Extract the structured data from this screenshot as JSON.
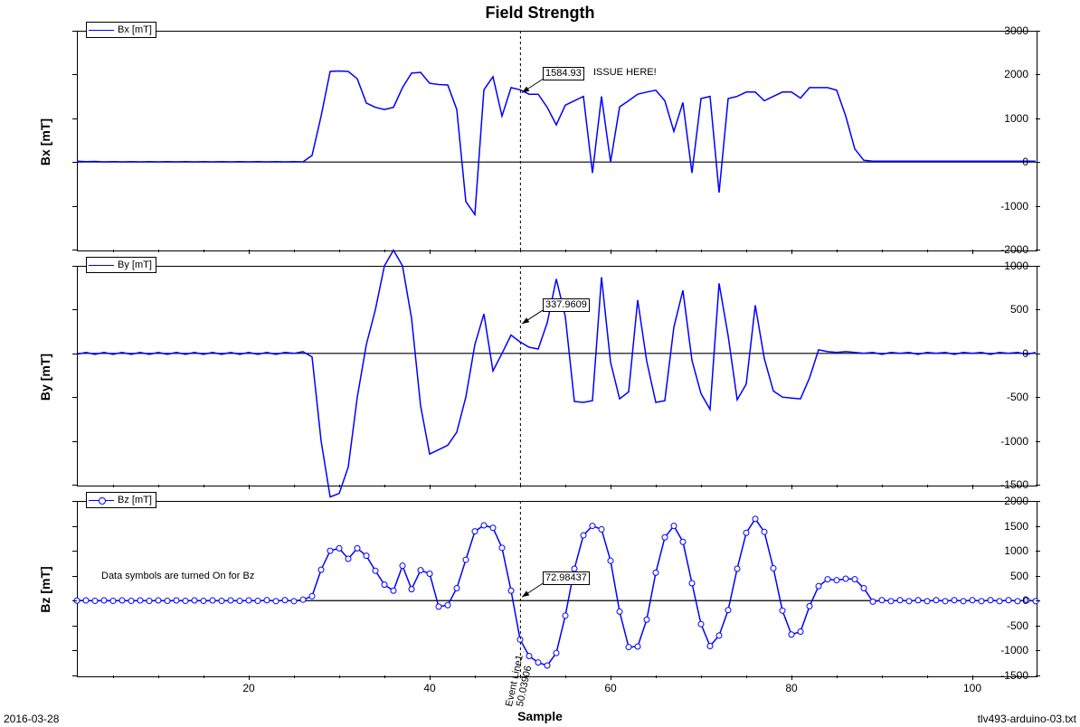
{
  "title": "Field Strength",
  "footer_left": "2016-03-28",
  "footer_right": "tlv493-arduino-03.txt",
  "xlabel": "Sample",
  "series_color": "#0000ff",
  "grid_color": "#000000",
  "event_line": {
    "x": 50.03906,
    "label1": "Event Line1",
    "label2": "50.03906"
  },
  "charts": [
    {
      "id": "bx",
      "ylabel": "Bx [mT]",
      "legend": "Bx [mT]",
      "ylim": [
        -2000,
        3000
      ],
      "yticks": [
        -2000,
        -1000,
        0,
        1000,
        2000,
        3000
      ],
      "markers": false,
      "callout": {
        "x": 50,
        "y_approx": 1584.93,
        "text": "1584.93",
        "extra": "ISSUE HERE!"
      },
      "data": [
        20,
        10,
        15,
        5,
        10,
        5,
        10,
        5,
        10,
        5,
        10,
        5,
        10,
        5,
        10,
        5,
        10,
        5,
        10,
        5,
        10,
        5,
        10,
        5,
        10,
        5,
        150,
        1050,
        2070,
        2080,
        2070,
        1900,
        1350,
        1250,
        1200,
        1250,
        1700,
        2030,
        2050,
        1800,
        1770,
        1760,
        1200,
        -900,
        -1200,
        1650,
        1950,
        1050,
        1700,
        1650,
        1550,
        1550,
        1250,
        850,
        1300,
        1400,
        1500,
        -250,
        1500,
        0,
        1260,
        1400,
        1550,
        1600,
        1640,
        1400,
        700,
        1360,
        -250,
        1450,
        1500,
        -700,
        1450,
        1500,
        1600,
        1600,
        1400,
        1500,
        1600,
        1600,
        1460,
        1700,
        1700,
        1700,
        1640,
        1050,
        300,
        40,
        20,
        20,
        20,
        20,
        20,
        20,
        20,
        20,
        20,
        20,
        20,
        20,
        20,
        20,
        20,
        20,
        20,
        20,
        20
      ]
    },
    {
      "id": "by",
      "ylabel": "By [mT]",
      "legend": "By [mT]",
      "ylim": [
        -1500,
        1000
      ],
      "yticks": [
        -1500,
        -1000,
        -500,
        0,
        500,
        1000
      ],
      "markers": false,
      "callout": {
        "x": 50,
        "y_approx": 337.96,
        "text": "337.9609"
      },
      "data": [
        -10,
        10,
        -10,
        10,
        -10,
        10,
        -10,
        10,
        -10,
        10,
        -10,
        10,
        -10,
        10,
        -10,
        10,
        -10,
        10,
        -10,
        10,
        -10,
        10,
        -10,
        10,
        0,
        20,
        -40,
        -1000,
        -1640,
        -1600,
        -1300,
        -500,
        100,
        500,
        1000,
        1180,
        1000,
        400,
        -600,
        -1150,
        -1100,
        -1050,
        -900,
        -500,
        100,
        450,
        -200,
        0,
        210,
        130,
        70,
        50,
        350,
        850,
        420,
        -550,
        -560,
        -540,
        870,
        -100,
        -520,
        -440,
        610,
        -90,
        -560,
        -540,
        300,
        720,
        -80,
        -460,
        -640,
        800,
        200,
        -530,
        -350,
        550,
        -60,
        -430,
        -500,
        -510,
        -520,
        -280,
        40,
        20,
        10,
        20,
        10,
        0,
        10,
        -10,
        10,
        0,
        10,
        -10,
        10,
        0,
        10,
        -10,
        10,
        0,
        10,
        -10,
        10,
        0,
        10,
        -10,
        10
      ]
    },
    {
      "id": "bz",
      "ylabel": "Bz [mT]",
      "legend": "Bz [mT]",
      "ylim": [
        -1500,
        2000
      ],
      "yticks": [
        -1500,
        -1000,
        -500,
        0,
        500,
        1000,
        1500,
        2000
      ],
      "markers": true,
      "callout": {
        "x": 50,
        "y_approx": 72.98,
        "text": "72.98437"
      },
      "note": "Data symbols are turned On for Bz",
      "data": [
        0,
        5,
        -5,
        5,
        -5,
        5,
        -5,
        5,
        -5,
        5,
        -5,
        5,
        -5,
        5,
        -5,
        5,
        -5,
        5,
        -5,
        5,
        -5,
        10,
        -10,
        10,
        -10,
        20,
        90,
        620,
        1000,
        1050,
        840,
        1050,
        900,
        600,
        320,
        200,
        700,
        230,
        610,
        540,
        -120,
        -90,
        250,
        820,
        1390,
        1510,
        1460,
        1060,
        200,
        -780,
        -1110,
        -1240,
        -1300,
        -1050,
        -300,
        640,
        1310,
        1500,
        1430,
        800,
        -220,
        -930,
        -920,
        -380,
        560,
        1270,
        1500,
        1180,
        350,
        -470,
        -910,
        -700,
        -190,
        640,
        1360,
        1640,
        1380,
        650,
        -200,
        -680,
        -620,
        -110,
        290,
        430,
        410,
        440,
        430,
        250,
        -20,
        10,
        -10,
        10,
        -10,
        10,
        -10,
        10,
        -10,
        10,
        -10,
        10,
        -10,
        10,
        -10,
        10,
        -10,
        10,
        -10
      ]
    }
  ],
  "xlim": [
    1,
    107
  ],
  "xticks": [
    20,
    40,
    60,
    80,
    100
  ]
}
